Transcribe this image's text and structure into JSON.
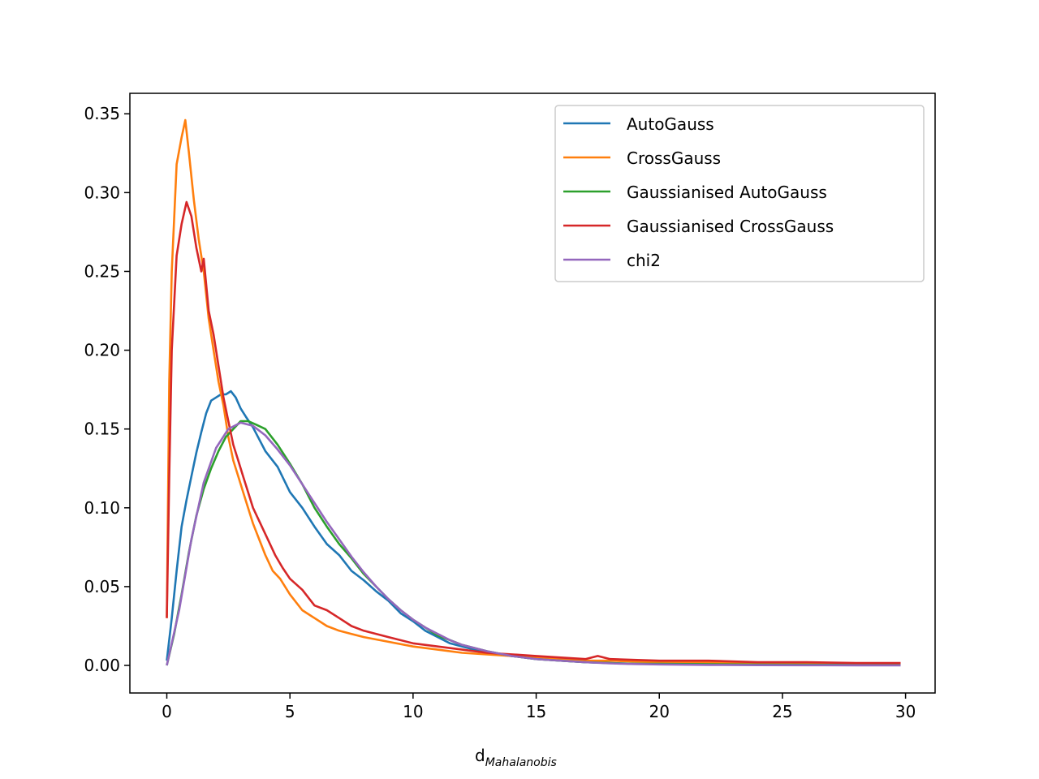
{
  "chart_data": {
    "type": "line",
    "title": "",
    "xlabel": "d",
    "xlabel_subscript": "Mahalanobis",
    "ylabel": "",
    "xlim": [
      -1.5,
      31.2
    ],
    "ylim": [
      -0.0175,
      0.363
    ],
    "xticks": [
      0,
      5,
      10,
      15,
      20,
      25,
      30
    ],
    "xtick_labels": [
      "0",
      "5",
      "10",
      "15",
      "20",
      "25",
      "30"
    ],
    "yticks": [
      0.0,
      0.05,
      0.1,
      0.15,
      0.2,
      0.25,
      0.3,
      0.35
    ],
    "ytick_labels": [
      "0.00",
      "0.05",
      "0.10",
      "0.15",
      "0.20",
      "0.25",
      "0.30",
      "0.35"
    ],
    "grid": false,
    "legend_position": "top-right",
    "series": [
      {
        "name": "AutoGauss",
        "color": "#1f77b4",
        "x": [
          0,
          0.2,
          0.4,
          0.6,
          0.8,
          1.0,
          1.2,
          1.4,
          1.6,
          1.8,
          2.0,
          2.2,
          2.4,
          2.6,
          2.8,
          3.0,
          3.2,
          3.5,
          3.8,
          4.0,
          4.5,
          5.0,
          5.5,
          6.0,
          6.5,
          7.0,
          7.5,
          8.0,
          8.5,
          9.0,
          9.5,
          10.0,
          10.5,
          11.0,
          11.5,
          12.0,
          12.5,
          13.0,
          13.5,
          14.0,
          15.0,
          16.0,
          17.0,
          18.0,
          19.0,
          20.0,
          22.0,
          24.0,
          26.0,
          28.0,
          29.8
        ],
        "y": [
          0.003,
          0.03,
          0.06,
          0.088,
          0.105,
          0.12,
          0.135,
          0.148,
          0.16,
          0.168,
          0.17,
          0.172,
          0.172,
          0.174,
          0.17,
          0.163,
          0.158,
          0.151,
          0.142,
          0.136,
          0.126,
          0.11,
          0.1,
          0.088,
          0.077,
          0.07,
          0.06,
          0.054,
          0.047,
          0.041,
          0.033,
          0.028,
          0.022,
          0.018,
          0.014,
          0.012,
          0.01,
          0.008,
          0.007,
          0.006,
          0.004,
          0.003,
          0.002,
          0.0015,
          0.001,
          0.001,
          0.0008,
          0.0006,
          0.0005,
          0.0004,
          0.0003
        ]
      },
      {
        "name": "CrossGauss",
        "color": "#ff7f0e",
        "x": [
          0,
          0.1,
          0.2,
          0.4,
          0.6,
          0.75,
          0.9,
          1.1,
          1.3,
          1.5,
          1.7,
          1.9,
          2.1,
          2.3,
          2.5,
          2.7,
          2.9,
          3.1,
          3.3,
          3.5,
          3.8,
          4.0,
          4.3,
          4.6,
          5.0,
          5.5,
          6.0,
          6.5,
          7.0,
          7.5,
          8.0,
          9.0,
          10.0,
          11.0,
          12.0,
          13.0,
          14.0,
          15.0,
          16.0,
          17.0,
          18.0,
          20.0,
          22.0,
          24.0,
          26.0,
          28.0,
          29.8
        ],
        "y": [
          0.03,
          0.18,
          0.25,
          0.318,
          0.335,
          0.346,
          0.325,
          0.295,
          0.27,
          0.25,
          0.22,
          0.2,
          0.18,
          0.165,
          0.145,
          0.13,
          0.12,
          0.11,
          0.1,
          0.09,
          0.078,
          0.07,
          0.06,
          0.055,
          0.045,
          0.035,
          0.03,
          0.025,
          0.022,
          0.02,
          0.018,
          0.015,
          0.012,
          0.01,
          0.008,
          0.007,
          0.006,
          0.005,
          0.004,
          0.003,
          0.003,
          0.002,
          0.002,
          0.0015,
          0.0015,
          0.001,
          0.001
        ]
      },
      {
        "name": "Gaussianised AutoGauss",
        "color": "#2ca02c",
        "x": [
          0,
          0.3,
          0.6,
          0.9,
          1.2,
          1.5,
          1.8,
          2.1,
          2.4,
          2.7,
          3.0,
          3.3,
          3.6,
          4.0,
          4.5,
          5.0,
          5.5,
          6.0,
          6.5,
          7.0,
          7.5,
          8.0,
          8.5,
          9.0,
          9.5,
          10.0,
          10.5,
          11.0,
          11.5,
          12.0,
          13.0,
          14.0,
          15.0,
          16.0,
          17.0,
          18.0,
          19.0,
          20.0,
          22.0,
          24.0,
          26.0,
          28.0,
          29.8
        ],
        "y": [
          0.0,
          0.02,
          0.045,
          0.072,
          0.095,
          0.112,
          0.125,
          0.136,
          0.145,
          0.15,
          0.155,
          0.155,
          0.153,
          0.15,
          0.14,
          0.128,
          0.115,
          0.1,
          0.088,
          0.077,
          0.068,
          0.058,
          0.05,
          0.042,
          0.035,
          0.029,
          0.024,
          0.019,
          0.016,
          0.013,
          0.009,
          0.006,
          0.004,
          0.003,
          0.002,
          0.0015,
          0.001,
          0.001,
          0.0008,
          0.0005,
          0.0004,
          0.0003,
          0.0002
        ]
      },
      {
        "name": "Gaussianised CrossGauss",
        "color": "#d62728",
        "x": [
          0,
          0.1,
          0.2,
          0.4,
          0.6,
          0.8,
          1.0,
          1.2,
          1.4,
          1.5,
          1.7,
          1.9,
          2.1,
          2.3,
          2.5,
          2.7,
          2.9,
          3.1,
          3.3,
          3.5,
          3.8,
          4.1,
          4.4,
          4.7,
          5.0,
          5.5,
          6.0,
          6.5,
          7.0,
          7.5,
          8.0,
          9.0,
          10.0,
          11.0,
          12.0,
          13.0,
          14.0,
          15.0,
          16.0,
          17.0,
          17.5,
          18.0,
          20.0,
          22.0,
          24.0,
          26.0,
          28.0,
          29.8
        ],
        "y": [
          0.03,
          0.12,
          0.2,
          0.26,
          0.28,
          0.294,
          0.285,
          0.265,
          0.25,
          0.258,
          0.225,
          0.21,
          0.19,
          0.17,
          0.155,
          0.14,
          0.13,
          0.12,
          0.11,
          0.1,
          0.09,
          0.08,
          0.07,
          0.062,
          0.055,
          0.048,
          0.038,
          0.035,
          0.03,
          0.025,
          0.022,
          0.018,
          0.014,
          0.012,
          0.01,
          0.008,
          0.007,
          0.006,
          0.005,
          0.004,
          0.006,
          0.004,
          0.003,
          0.003,
          0.002,
          0.002,
          0.0015,
          0.0015
        ]
      },
      {
        "name": "chi2",
        "color": "#9467bd",
        "x": [
          0,
          0.5,
          1.0,
          1.5,
          2.0,
          2.5,
          3.0,
          3.5,
          4.0,
          4.5,
          5.0,
          5.5,
          6.0,
          6.5,
          7.0,
          7.5,
          8.0,
          8.5,
          9.0,
          9.5,
          10.0,
          10.5,
          11.0,
          11.5,
          12.0,
          13.0,
          14.0,
          15.0,
          16.0,
          17.0,
          18.0,
          19.0,
          20.0,
          22.0,
          24.0,
          26.0,
          28.0,
          29.8
        ],
        "y": [
          0.0,
          0.035,
          0.08,
          0.116,
          0.138,
          0.15,
          0.154,
          0.152,
          0.146,
          0.137,
          0.127,
          0.115,
          0.103,
          0.091,
          0.08,
          0.069,
          0.059,
          0.05,
          0.042,
          0.035,
          0.029,
          0.024,
          0.02,
          0.016,
          0.013,
          0.009,
          0.006,
          0.004,
          0.003,
          0.002,
          0.0013,
          0.0009,
          0.0006,
          0.0003,
          0.00015,
          0.0001,
          5e-05,
          2e-05
        ]
      }
    ]
  }
}
